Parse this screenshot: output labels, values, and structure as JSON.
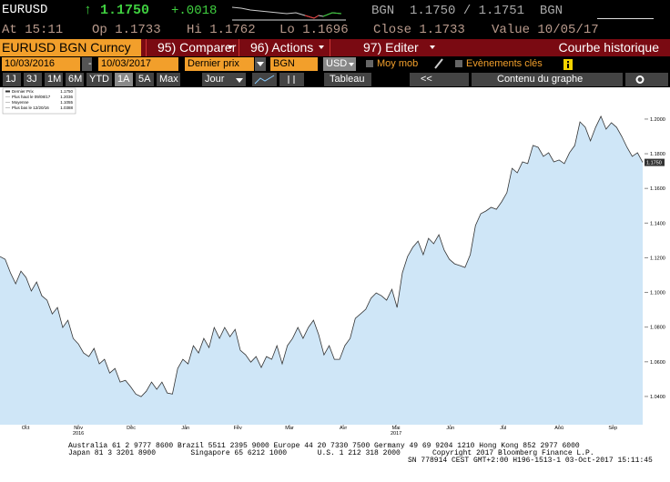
{
  "header": {
    "ticker": "EURUSD",
    "last": "↑ 1.1750",
    "change": "+.0018",
    "quote": "BGN  1.1750 / 1.1751  BGN",
    "time": "At 15:11",
    "open": "Op 1.1733",
    "high": "Hi 1.1762",
    "low": "Lo 1.1696",
    "close": "Close 1.1733",
    "value_date": "Value 10/05/17"
  },
  "menu": {
    "security": "EURUSD BGN Curncy",
    "items": [
      "95) Comparer",
      "96) Actions",
      "97) Editer"
    ],
    "title": "Courbe historique"
  },
  "controls": {
    "start_date": "10/03/2016",
    "dash": "-",
    "end_date": "10/03/2017",
    "field": "Dernier prix",
    "source": "BGN",
    "currency": "USD",
    "moving_avg": "Moy mob",
    "events": "Evènements clés",
    "periods": [
      "1J",
      "3J",
      "1M",
      "6M",
      "YTD",
      "1A",
      "5A",
      "Max"
    ],
    "frequency": "Jour",
    "table": "Tableau",
    "back": "<<",
    "content": "Contenu du graphe"
  },
  "chart_data": {
    "type": "line",
    "color": "#333333",
    "fill": "#cfe6f7",
    "legend": [
      {
        "name": "Dernier Prix",
        "value": "1.1750"
      },
      {
        "name": "Plus haut le 09/08/17",
        "value": "1.2036"
      },
      {
        "name": "Moyenne",
        "value": "1.1055"
      },
      {
        "name": "Plus bas le 12/20/16",
        "value": "1.0388"
      }
    ],
    "values": [
      1.1207,
      1.1191,
      1.1113,
      1.105,
      1.1123,
      1.1086,
      1.1008,
      1.106,
      1.0981,
      1.0955,
      1.0876,
      1.0913,
      1.0798,
      1.084,
      1.0735,
      1.0703,
      1.0651,
      1.063,
      1.0677,
      1.0588,
      1.0614,
      1.0535,
      1.0561,
      1.0483,
      1.0493,
      1.0456,
      1.0414,
      1.0399,
      1.043,
      1.0483,
      1.0441,
      1.0483,
      1.042,
      1.0414,
      1.0561,
      1.0614,
      1.0588,
      1.0693,
      1.0651,
      1.0735,
      1.0682,
      1.0798,
      1.0735,
      1.0798,
      1.0745,
      1.0787,
      1.0666,
      1.064,
      1.0598,
      1.063,
      1.0567,
      1.063,
      1.0614,
      1.0693,
      1.0588,
      1.0693,
      1.0735,
      1.0798,
      1.0735,
      1.0798,
      1.084,
      1.0756,
      1.064,
      1.0693,
      1.0614,
      1.0614,
      1.0693,
      1.0735,
      1.085,
      1.0876,
      1.0903,
      1.0966,
      1.0997,
      1.0981,
      1.0955,
      1.1018,
      1.0913,
      1.1113,
      1.1207,
      1.126,
      1.1296,
      1.1218,
      1.1312,
      1.1281,
      1.1333,
      1.1244,
      1.1191,
      1.1165,
      1.1155,
      1.1144,
      1.1218,
      1.1386,
      1.1454,
      1.147,
      1.1491,
      1.148,
      1.1522,
      1.1575,
      1.1716,
      1.169,
      1.1753,
      1.1743,
      1.1848,
      1.1837,
      1.1785,
      1.1806,
      1.1753,
      1.1764,
      1.1743,
      1.1806,
      1.1848,
      1.1984,
      1.1953,
      1.1874,
      1.1953,
      1.2016,
      1.1942,
      1.1979,
      1.1953,
      1.19,
      1.1837,
      1.1785,
      1.1806,
      1.175
    ],
    "ylim": [
      1.0237,
      1.2178
    ],
    "yticks": [
      {
        "value": 1.04,
        "label": "1.0400"
      },
      {
        "value": 1.06,
        "label": "1.0600"
      },
      {
        "value": 1.08,
        "label": "1.0800"
      },
      {
        "value": 1.1,
        "label": "1.1000"
      },
      {
        "value": 1.12,
        "label": "1.1200"
      },
      {
        "value": 1.14,
        "label": "1.1400"
      },
      {
        "value": 1.16,
        "label": "1.1600"
      },
      {
        "value": 1.18,
        "label": "1.1800"
      },
      {
        "value": 1.2,
        "label": "1.2000"
      }
    ],
    "xlim": [
      0,
      123
    ],
    "xticks": [
      {
        "value": 4.9,
        "label": "Oct"
      },
      {
        "value": 15.0,
        "label": "Nov"
      },
      {
        "value": 25.1,
        "label": "Déc"
      },
      {
        "value": 35.5,
        "label": "Jan"
      },
      {
        "value": 45.5,
        "label": "Fév"
      },
      {
        "value": 55.4,
        "label": "Mar"
      },
      {
        "value": 65.7,
        "label": "Avr"
      },
      {
        "value": 75.8,
        "label": "Mai"
      },
      {
        "value": 86.2,
        "label": "Jun"
      },
      {
        "value": 96.3,
        "label": "Jul"
      },
      {
        "value": 107.0,
        "label": "Aoû"
      },
      {
        "value": 117.3,
        "label": "Sep"
      }
    ],
    "xyears": [
      {
        "value": 15.0,
        "label": "2016"
      },
      {
        "value": 75.8,
        "label": "2017"
      }
    ],
    "grid": false
  },
  "footer": {
    "lines": [
      "Australia 61 2 9777 8600 Brazil 5511 2395 9000 Europe 44 20 7330 7500 Germany 49 69 9204 1210 Hong Kong 852 2977 6000",
      "Japan 81 3 3201 8900        Singapore 65 6212 1000       U.S. 1 212 318 2000",
      "Copyright 2017 Bloomberg Finance L.P.",
      "SN 778914 CEST GMT+2:00 H196-1513-1 03-Oct-2017 15:11:45"
    ]
  }
}
